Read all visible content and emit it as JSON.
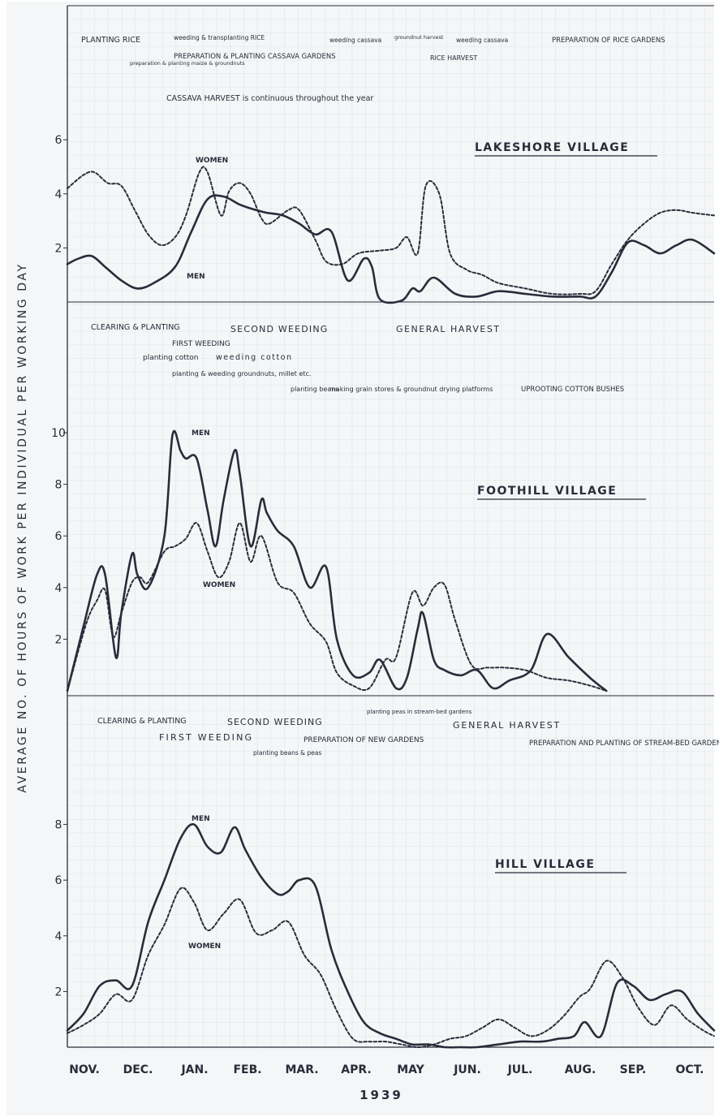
{
  "page": {
    "ylabel": "AVERAGE NO. OF HOURS OF WORK PER INDIVIDUAL PER WORKING DAY",
    "months": [
      "NOV.",
      "DEC.",
      "JAN.",
      "FEB.",
      "MAR.",
      "APR.",
      "MAY",
      "JUN.",
      "JUL.",
      "AUG.",
      "SEP.",
      "OCT."
    ],
    "year": "1939",
    "colors": {
      "paper": "#f4f6f7",
      "grid_minor": "#c9d7e0",
      "grid_major": "#a9bccb",
      "ink": "#2a2c3a"
    }
  },
  "chart_data": [
    {
      "type": "line",
      "title": "LAKESHORE VILLAGE",
      "xlabel": "1939",
      "ylabel": "AVERAGE NO. OF HOURS OF WORK PER INDIVIDUAL PER WORKING DAY",
      "x_unit": "months since 1 Nov 1938 (NOV. ... OCT.)",
      "xlim": [
        0,
        12
      ],
      "ylim": [
        0,
        6.5
      ],
      "yticks": [
        2,
        4,
        6
      ],
      "grid": true,
      "series": [
        {
          "name": "MEN",
          "style": "solid",
          "x": [
            0.0,
            0.2,
            0.45,
            0.7,
            1.0,
            1.3,
            1.6,
            2.0,
            2.3,
            2.6,
            2.9,
            3.2,
            3.5,
            3.7,
            4.0,
            4.3,
            4.6,
            4.9,
            5.2,
            5.5,
            5.65,
            5.8,
            6.2,
            6.4,
            6.55,
            6.8,
            7.2,
            7.6,
            8.0,
            8.5,
            9.0,
            9.5,
            9.8,
            10.1,
            10.4,
            10.7,
            11.0,
            11.3,
            11.6,
            12.0
          ],
          "values": [
            1.4,
            1.6,
            1.7,
            1.3,
            0.8,
            0.5,
            0.7,
            1.3,
            2.6,
            3.8,
            3.9,
            3.6,
            3.4,
            3.3,
            3.2,
            2.9,
            2.5,
            2.6,
            0.8,
            1.6,
            1.3,
            0.1,
            0.05,
            0.5,
            0.4,
            0.9,
            0.3,
            0.2,
            0.4,
            0.3,
            0.2,
            0.2,
            0.2,
            1.1,
            2.2,
            2.1,
            1.8,
            2.1,
            2.3,
            1.8
          ]
        },
        {
          "name": "WOMEN",
          "style": "dashed",
          "x": [
            0.0,
            0.3,
            0.5,
            0.75,
            1.0,
            1.25,
            1.5,
            1.75,
            2.0,
            2.2,
            2.45,
            2.6,
            2.85,
            3.0,
            3.2,
            3.4,
            3.6,
            3.75,
            4.1,
            4.3,
            4.6,
            4.8,
            5.1,
            5.4,
            5.8,
            6.1,
            6.3,
            6.5,
            6.65,
            6.9,
            7.1,
            7.4,
            7.7,
            8.0,
            8.5,
            9.0,
            9.5,
            9.8,
            10.1,
            10.4,
            10.7,
            11.0,
            11.3,
            11.6,
            12.0
          ],
          "values": [
            4.2,
            4.7,
            4.8,
            4.4,
            4.3,
            3.4,
            2.5,
            2.1,
            2.4,
            3.2,
            4.8,
            4.8,
            3.2,
            4.1,
            4.4,
            4.0,
            3.1,
            2.9,
            3.4,
            3.4,
            2.3,
            1.5,
            1.4,
            1.8,
            1.9,
            2.0,
            2.4,
            1.8,
            4.3,
            4.0,
            1.8,
            1.2,
            1.0,
            0.7,
            0.5,
            0.3,
            0.3,
            0.4,
            1.4,
            2.3,
            2.9,
            3.3,
            3.4,
            3.3,
            3.2
          ]
        }
      ],
      "annotations": [
        "PLANTING RICE",
        "weeding & transplanting RICE",
        "weeding cassava",
        "groundnut harvest",
        "weeding cassava",
        "PREPARATION OF RICE GARDENS",
        "PREPARATION & PLANTING CASSAVA GARDENS",
        "preparation & planting maize & groundnuts",
        "RICE HARVEST",
        "CASSAVA HARVEST is continuous throughout the year"
      ]
    },
    {
      "type": "line",
      "title": "FOOTHILL VILLAGE",
      "xlabel": "1939",
      "ylabel": "AVERAGE NO. OF HOURS OF WORK PER INDIVIDUAL PER WORKING DAY",
      "x_unit": "months since 1 Nov 1938 (NOV. ... OCT.)",
      "xlim": [
        0,
        12
      ],
      "ylim": [
        0,
        11
      ],
      "yticks": [
        2,
        4,
        6,
        8,
        10
      ],
      "grid": true,
      "series": [
        {
          "name": "MEN",
          "style": "solid",
          "x": [
            0.0,
            0.3,
            0.55,
            0.7,
            0.9,
            1.0,
            1.2,
            1.3,
            1.5,
            1.8,
            1.95,
            2.1,
            2.2,
            2.4,
            2.6,
            2.75,
            2.9,
            3.1,
            3.2,
            3.4,
            3.6,
            3.7,
            3.9,
            4.2,
            4.5,
            4.8,
            5.0,
            5.3,
            5.6,
            5.8,
            6.1,
            6.3,
            6.5,
            6.6,
            6.8,
            7.0,
            7.3,
            7.6,
            7.9,
            8.2,
            8.6,
            8.9,
            9.3,
            9.7,
            10.0
          ],
          "values": [
            0.0,
            2.5,
            4.5,
            4.5,
            1.3,
            3.0,
            5.3,
            4.5,
            4.0,
            6.0,
            9.9,
            9.3,
            9.0,
            9.0,
            7.0,
            5.6,
            7.4,
            9.3,
            8.4,
            5.6,
            7.4,
            6.9,
            6.2,
            5.6,
            4.0,
            4.8,
            2.0,
            0.6,
            0.7,
            1.2,
            0.1,
            0.5,
            2.4,
            3.0,
            1.2,
            0.8,
            0.6,
            0.8,
            0.1,
            0.4,
            0.8,
            2.2,
            1.3,
            0.5,
            0.0
          ]
        },
        {
          "name": "WOMEN",
          "style": "dashed",
          "x": [
            0.0,
            0.35,
            0.55,
            0.7,
            0.85,
            1.0,
            1.2,
            1.35,
            1.5,
            1.8,
            2.0,
            2.2,
            2.4,
            2.6,
            2.8,
            3.0,
            3.2,
            3.4,
            3.6,
            3.9,
            4.2,
            4.5,
            4.8,
            5.0,
            5.3,
            5.6,
            5.9,
            6.1,
            6.4,
            6.6,
            6.8,
            7.0,
            7.2,
            7.5,
            7.8,
            8.1,
            8.5,
            8.9,
            9.3,
            9.7,
            10.0
          ],
          "values": [
            0.0,
            2.6,
            3.5,
            3.9,
            2.1,
            3.0,
            4.2,
            4.4,
            4.2,
            5.4,
            5.6,
            5.9,
            6.5,
            5.4,
            4.4,
            5.0,
            6.5,
            5.0,
            6.0,
            4.2,
            3.8,
            2.6,
            1.9,
            0.7,
            0.2,
            0.1,
            1.2,
            1.3,
            3.8,
            3.3,
            4.0,
            4.1,
            2.7,
            1.0,
            0.9,
            0.9,
            0.8,
            0.5,
            0.4,
            0.2,
            0.0
          ]
        }
      ],
      "annotations": [
        "CLEARING & PLANTING",
        "FIRST WEEDING",
        "SECOND WEEDING",
        "GENERAL HARVEST",
        "planting cotton",
        "weeding cotton",
        "planting & weeding groundnuts, millet etc.",
        "planting beans",
        "making grain stores & groundnut drying platforms",
        "UPROOTING COTTON BUSHES"
      ]
    },
    {
      "type": "line",
      "title": "HILL VILLAGE",
      "xlabel": "1939",
      "ylabel": "AVERAGE NO. OF HOURS OF WORK PER INDIVIDUAL PER WORKING DAY",
      "x_unit": "months since 1 Nov 1938 (NOV. ... OCT.)",
      "xlim": [
        0,
        12
      ],
      "ylim": [
        0,
        9
      ],
      "yticks": [
        2,
        4,
        6,
        8
      ],
      "grid": true,
      "series": [
        {
          "name": "MEN",
          "style": "solid",
          "x": [
            0.0,
            0.3,
            0.6,
            0.9,
            1.2,
            1.5,
            1.8,
            2.1,
            2.35,
            2.6,
            2.85,
            3.1,
            3.3,
            3.6,
            3.9,
            4.1,
            4.3,
            4.6,
            4.9,
            5.2,
            5.5,
            5.8,
            6.1,
            6.4,
            6.7,
            7.0,
            7.3,
            7.6,
            8.0,
            8.4,
            8.8,
            9.1,
            9.4,
            9.6,
            9.9,
            10.2,
            10.5,
            10.8,
            11.1,
            11.4,
            11.7,
            12.0
          ],
          "values": [
            0.6,
            1.2,
            2.2,
            2.4,
            2.2,
            4.5,
            6.0,
            7.5,
            8.0,
            7.2,
            7.0,
            7.9,
            7.1,
            6.1,
            5.5,
            5.6,
            6.0,
            5.8,
            3.5,
            2.0,
            0.9,
            0.5,
            0.3,
            0.1,
            0.1,
            0.0,
            0.0,
            0.0,
            0.1,
            0.2,
            0.2,
            0.3,
            0.4,
            0.9,
            0.4,
            2.3,
            2.2,
            1.7,
            1.9,
            2.0,
            1.2,
            0.6
          ]
        },
        {
          "name": "WOMEN",
          "style": "dashed",
          "x": [
            0.0,
            0.3,
            0.6,
            0.9,
            1.2,
            1.5,
            1.8,
            2.1,
            2.35,
            2.6,
            2.9,
            3.2,
            3.5,
            3.8,
            4.1,
            4.4,
            4.7,
            5.0,
            5.3,
            5.6,
            5.9,
            6.2,
            6.5,
            6.8,
            7.1,
            7.4,
            7.7,
            8.0,
            8.3,
            8.6,
            8.9,
            9.2,
            9.5,
            9.7,
            10.0,
            10.3,
            10.6,
            10.9,
            11.2,
            11.5,
            11.8,
            12.0
          ],
          "values": [
            0.5,
            0.8,
            1.2,
            1.9,
            1.7,
            3.3,
            4.4,
            5.7,
            5.2,
            4.2,
            4.8,
            5.3,
            4.1,
            4.2,
            4.5,
            3.3,
            2.6,
            1.3,
            0.3,
            0.2,
            0.2,
            0.1,
            0.0,
            0.1,
            0.3,
            0.4,
            0.7,
            1.0,
            0.7,
            0.4,
            0.6,
            1.1,
            1.8,
            2.1,
            3.1,
            2.5,
            1.4,
            0.8,
            1.5,
            1.0,
            0.6,
            0.4
          ]
        }
      ],
      "annotations": [
        "CLEARING & PLANTING",
        "SECOND WEEDING",
        "planting peas in stream-bed gardens",
        "GENERAL HARVEST",
        "FIRST WEEDING",
        "PREPARATION OF NEW GARDENS",
        "planting beans & peas",
        "PREPARATION AND PLANTING OF STREAM-BED GARDENS"
      ]
    }
  ]
}
